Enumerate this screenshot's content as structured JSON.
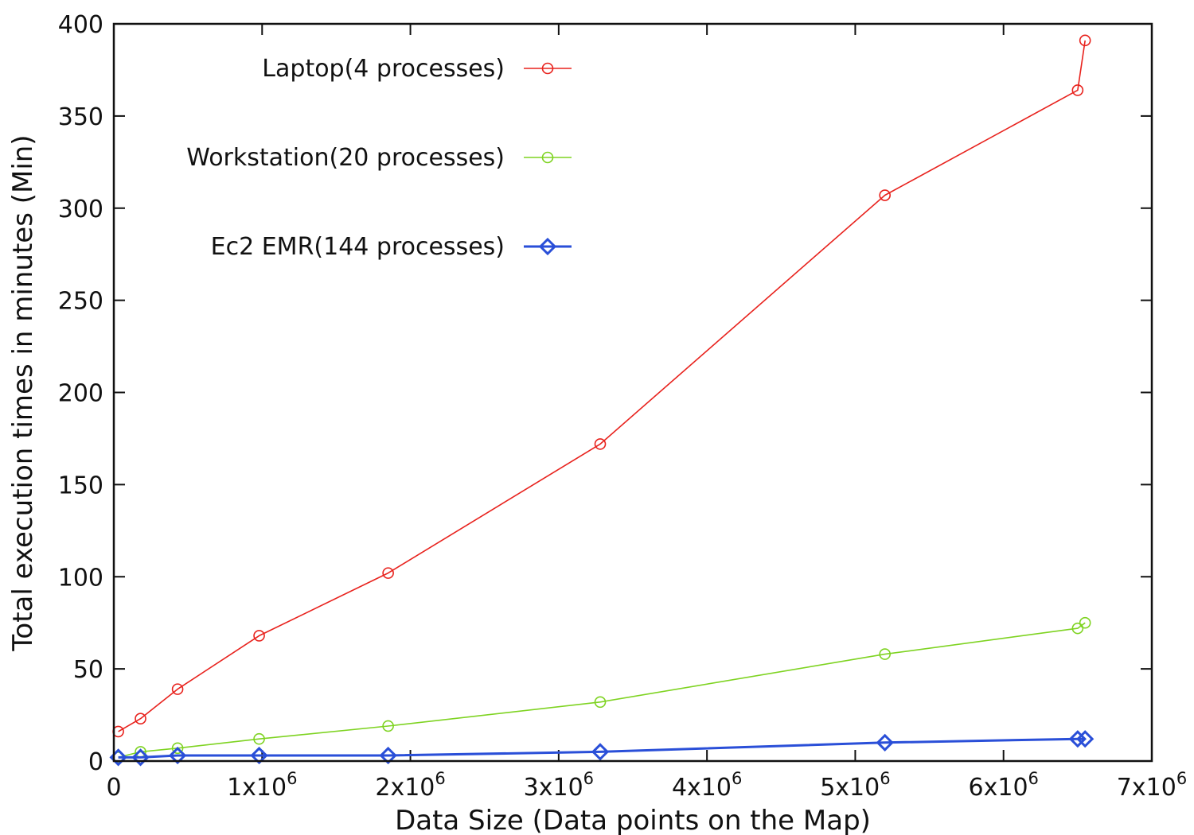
{
  "chart_data": {
    "type": "line",
    "title": "",
    "xlabel": "Data Size (Data points on the Map)",
    "ylabel": "Total execution times in minutes (Min)",
    "xlim": [
      0,
      7000000
    ],
    "ylim": [
      0,
      400
    ],
    "x_ticks": [
      {
        "value": 0,
        "base": "0",
        "exp": ""
      },
      {
        "value": 1000000,
        "base": "1x10",
        "exp": "6"
      },
      {
        "value": 2000000,
        "base": "2x10",
        "exp": "6"
      },
      {
        "value": 3000000,
        "base": "3x10",
        "exp": "6"
      },
      {
        "value": 4000000,
        "base": "4x10",
        "exp": "6"
      },
      {
        "value": 5000000,
        "base": "5x10",
        "exp": "6"
      },
      {
        "value": 6000000,
        "base": "6x10",
        "exp": "6"
      },
      {
        "value": 7000000,
        "base": "7x10",
        "exp": "6"
      }
    ],
    "y_ticks": [
      {
        "value": 0,
        "label": "0"
      },
      {
        "value": 50,
        "label": "50"
      },
      {
        "value": 100,
        "label": "100"
      },
      {
        "value": 150,
        "label": "150"
      },
      {
        "value": 200,
        "label": "200"
      },
      {
        "value": 250,
        "label": "250"
      },
      {
        "value": 300,
        "label": "300"
      },
      {
        "value": 350,
        "label": "350"
      },
      {
        "value": 400,
        "label": "400"
      }
    ],
    "grid": false,
    "legend_position": "top-left",
    "series": [
      {
        "name": "Laptop(4 processes)",
        "color": "#e8221d",
        "marker": "circle",
        "points": [
          [
            30000,
            16
          ],
          [
            180000,
            23
          ],
          [
            430000,
            39
          ],
          [
            980000,
            68
          ],
          [
            1850000,
            102
          ],
          [
            3280000,
            172
          ],
          [
            5200000,
            307
          ],
          [
            6500000,
            364
          ],
          [
            6550000,
            391
          ]
        ]
      },
      {
        "name": "Workstation(20 processes)",
        "color": "#7ed321",
        "marker": "circle",
        "points": [
          [
            30000,
            2
          ],
          [
            180000,
            5
          ],
          [
            430000,
            7
          ],
          [
            980000,
            12
          ],
          [
            1850000,
            19
          ],
          [
            3280000,
            32
          ],
          [
            5200000,
            58
          ],
          [
            6500000,
            72
          ],
          [
            6550000,
            75
          ]
        ]
      },
      {
        "name": "Ec2 EMR(144 processes)",
        "color": "#2a4fd8",
        "marker": "diamond",
        "points": [
          [
            30000,
            2
          ],
          [
            180000,
            2
          ],
          [
            430000,
            3
          ],
          [
            980000,
            3
          ],
          [
            1850000,
            3
          ],
          [
            3280000,
            5
          ],
          [
            5200000,
            10
          ],
          [
            6500000,
            12
          ],
          [
            6550000,
            12
          ]
        ]
      }
    ]
  }
}
